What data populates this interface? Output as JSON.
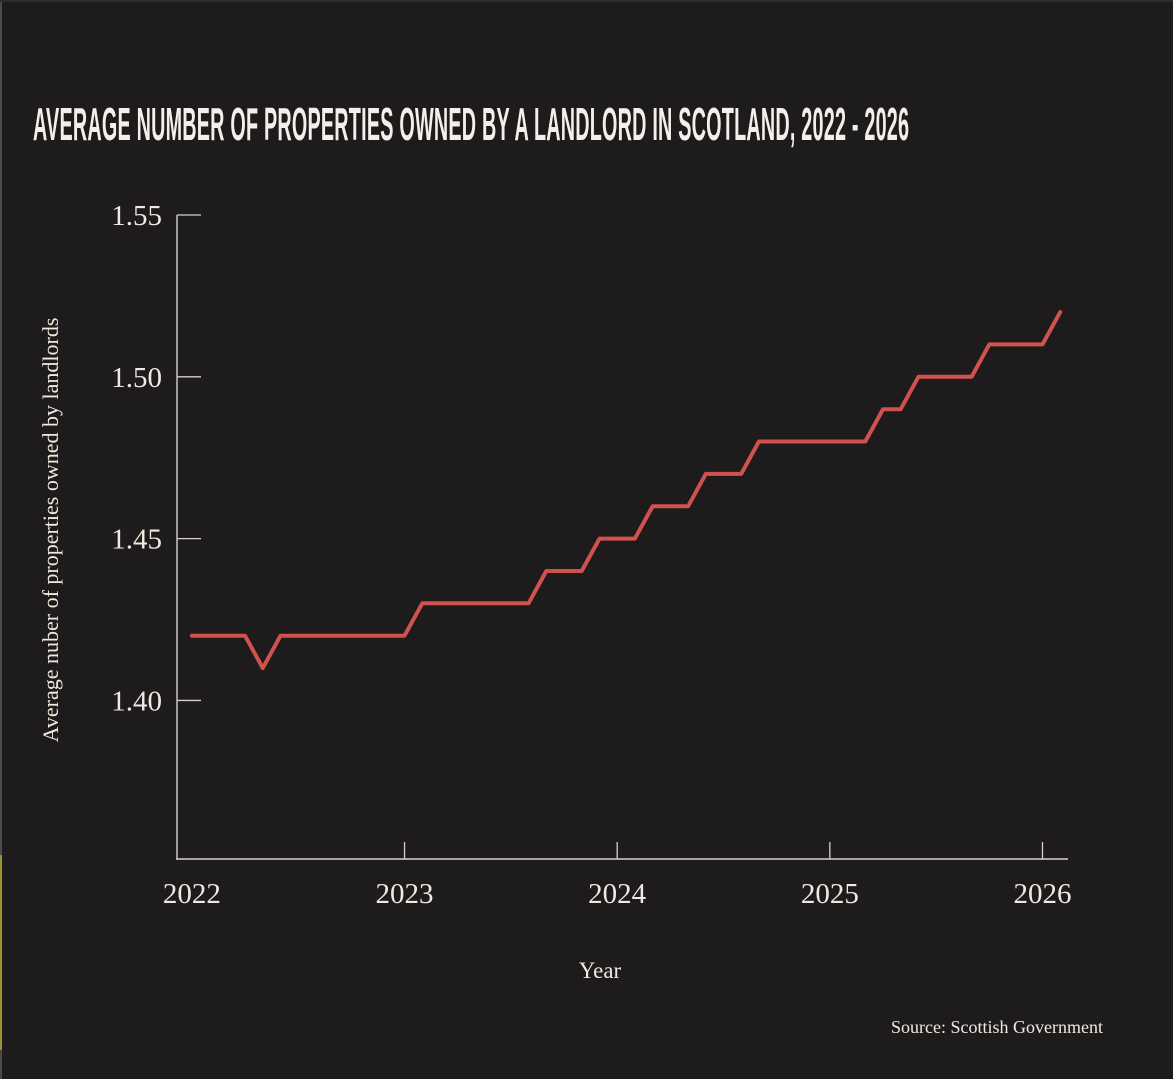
{
  "title": "AVERAGE NUMBER OF PROPERTIES OWNED BY A LANDLORD IN SCOTLAND, 2022 - 2026",
  "source": "Source: Scottish Government",
  "colors": {
    "background": "#1d1b1b",
    "line": "#d0524e",
    "axis": "#d6d2ca",
    "text": "#efe9e0",
    "edge_accent_yellow": "#9d9232"
  },
  "chart_data": {
    "type": "line",
    "title": "AVERAGE NUMBER OF PROPERTIES OWNED BY A LANDLORD IN SCOTLAND, 2022 - 2026",
    "xlabel": "Year",
    "ylabel": "Average nuber of properties owned by landlords",
    "grid": false,
    "legend": false,
    "line_color": "#d0524e",
    "xlim": [
      2021.93,
      2026.12
    ],
    "ylim": [
      1.351,
      1.55
    ],
    "x_ticks": [
      {
        "label": "2022",
        "value": 2022,
        "mark": false
      },
      {
        "label": "2023",
        "value": 2023,
        "mark": true
      },
      {
        "label": "2024",
        "value": 2024,
        "mark": true
      },
      {
        "label": "2025",
        "value": 2025,
        "mark": true
      },
      {
        "label": "2026",
        "value": 2026,
        "mark": true
      }
    ],
    "y_ticks": [
      {
        "label": "1.40",
        "value": 1.4
      },
      {
        "label": "1.45",
        "value": 1.45
      },
      {
        "label": "1.50",
        "value": 1.5
      },
      {
        "label": "1.55",
        "value": 1.55
      }
    ],
    "series": [
      {
        "x_start": 2022,
        "interval": "monthly",
        "points_per_year": 12,
        "values": [
          1.42,
          1.42,
          1.42,
          1.42,
          1.41,
          1.42,
          1.42,
          1.42,
          1.42,
          1.42,
          1.42,
          1.42,
          1.42,
          1.43,
          1.43,
          1.43,
          1.43,
          1.43,
          1.43,
          1.43,
          1.44,
          1.44,
          1.44,
          1.45,
          1.45,
          1.45,
          1.46,
          1.46,
          1.46,
          1.47,
          1.47,
          1.47,
          1.48,
          1.48,
          1.48,
          1.48,
          1.48,
          1.48,
          1.48,
          1.49,
          1.49,
          1.5,
          1.5,
          1.5,
          1.5,
          1.51,
          1.51,
          1.51,
          1.51,
          1.52
        ]
      }
    ]
  }
}
